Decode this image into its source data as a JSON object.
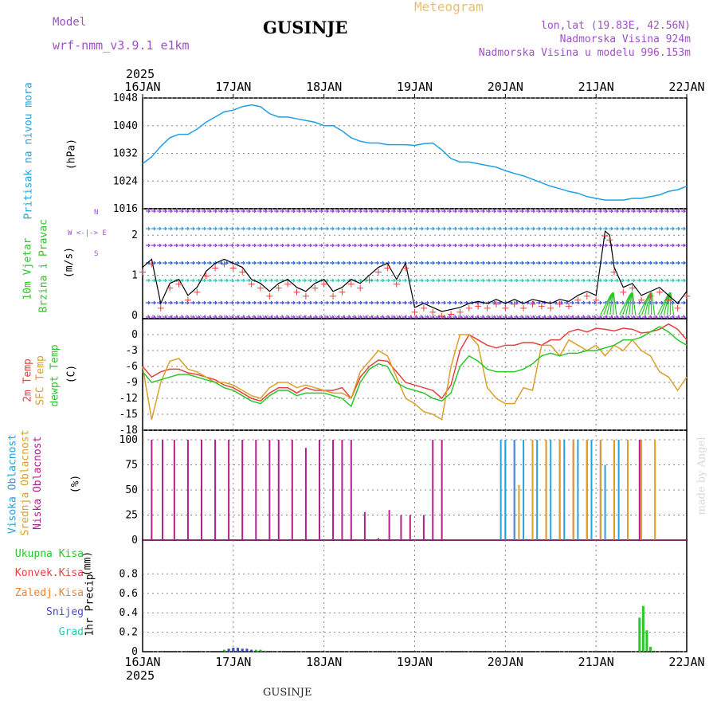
{
  "header": {
    "model_label": "Model",
    "model_name": "wrf-nmm_v3.9.1  e1km",
    "title": "GUSINJE",
    "meteogram": "Meteogram",
    "lonlat": "lon,lat (19.83E, 42.56N)",
    "elevation": "Nadmorska Visina 924m",
    "model_elevation": "Nadmorska Visina u modelu 996.153m",
    "year": "2025",
    "footer_station": "GUSINJE",
    "watermark": "made by Angel"
  },
  "colors": {
    "pressure": "#1ea0e6",
    "temp2m": "#e84040",
    "sfc_temp": "#dca028",
    "dewpt": "#28c828",
    "cloud_high": "#28a0dc",
    "cloud_mid": "#dca028",
    "cloud_low": "#b41e8c",
    "precip_total": "#28c828",
    "precip_conv": "#e84040",
    "precip_frz": "#f08232",
    "snow": "#4646dc",
    "graupel": "#28c8b4",
    "wind_label": "#28c828",
    "purple": "#a050c8"
  },
  "x_axis": {
    "ticks": [
      "16JAN",
      "17JAN",
      "18JAN",
      "19JAN",
      "20JAN",
      "21JAN",
      "22JAN"
    ]
  },
  "chart_data": [
    {
      "type": "line",
      "panel": "pressure",
      "ylabel": "Pritisak na nivou mora",
      "unit": "(hPa)",
      "ylim": [
        1016,
        1048
      ],
      "yticks": [
        1016,
        1024,
        1032,
        1040,
        1048
      ],
      "x_days": [
        0,
        0.1,
        0.2,
        0.3,
        0.4,
        0.5,
        0.6,
        0.7,
        0.8,
        0.9,
        1.0,
        1.1,
        1.2,
        1.3,
        1.4,
        1.5,
        1.6,
        1.7,
        1.8,
        1.9,
        2.0,
        2.1,
        2.2,
        2.3,
        2.4,
        2.5,
        2.6,
        2.7,
        2.8,
        2.9,
        3.0,
        3.1,
        3.2,
        3.3,
        3.4,
        3.5,
        3.6,
        3.7,
        3.8,
        3.9,
        4.0,
        4.1,
        4.2,
        4.3,
        4.4,
        4.5,
        4.6,
        4.7,
        4.8,
        4.9,
        5.0,
        5.1,
        5.2,
        5.3,
        5.4,
        5.5,
        5.6,
        5.7,
        5.8,
        5.9,
        6.0
      ],
      "series": [
        {
          "values": [
            1029,
            1031,
            1034,
            1036.5,
            1037.5,
            1037.5,
            1039,
            1041,
            1042.5,
            1044,
            1044.5,
            1045.5,
            1046,
            1045.5,
            1043.5,
            1042.5,
            1042.5,
            1042,
            1041.5,
            1041,
            1040,
            1040,
            1038.5,
            1036.5,
            1035.5,
            1035,
            1035,
            1034.5,
            1034.5,
            1034.5,
            1034.3,
            1034.8,
            1035,
            1033,
            1030.5,
            1029.5,
            1029.5,
            1029,
            1028.5,
            1028,
            1027,
            1026.2,
            1025.5,
            1024.5,
            1023.5,
            1022.5,
            1021.8,
            1021,
            1020.5,
            1019.5,
            1019,
            1018.5,
            1018.5,
            1018.5,
            1019,
            1019,
            1019.5,
            1020,
            1021,
            1021.5,
            1022.5
          ]
        }
      ]
    },
    {
      "type": "line",
      "panel": "wind",
      "ylabel_lines": [
        "10m Vjetar",
        "Brzina i Pravac"
      ],
      "unit": "(m/s)",
      "ylim": [
        0,
        2.5
      ],
      "yticks": [
        0,
        1,
        2
      ],
      "compass": "N",
      "compass_row": "W <-|-> E",
      "compass_bottom": "S",
      "x_days": [
        0,
        0.1,
        0.2,
        0.3,
        0.4,
        0.5,
        0.6,
        0.7,
        0.8,
        0.9,
        1.0,
        1.1,
        1.2,
        1.3,
        1.4,
        1.5,
        1.6,
        1.7,
        1.8,
        1.9,
        2.0,
        2.1,
        2.2,
        2.3,
        2.4,
        2.5,
        2.6,
        2.7,
        2.8,
        2.9,
        3.0,
        3.1,
        3.2,
        3.3,
        3.4,
        3.5,
        3.6,
        3.7,
        3.8,
        3.9,
        4.0,
        4.1,
        4.2,
        4.3,
        4.4,
        4.5,
        4.6,
        4.7,
        4.8,
        4.9,
        5.0,
        5.1,
        5.15,
        5.2,
        5.3,
        5.4,
        5.5,
        5.6,
        5.7,
        5.8,
        5.9,
        6.0
      ],
      "series": [
        {
          "values": [
            1.2,
            1.4,
            0.3,
            0.8,
            0.9,
            0.5,
            0.7,
            1.1,
            1.3,
            1.4,
            1.3,
            1.2,
            0.9,
            0.8,
            0.6,
            0.8,
            0.9,
            0.7,
            0.6,
            0.8,
            0.9,
            0.6,
            0.7,
            0.9,
            0.8,
            1.0,
            1.2,
            1.3,
            0.9,
            1.3,
            0.2,
            0.3,
            0.2,
            0.1,
            0.15,
            0.2,
            0.3,
            0.35,
            0.3,
            0.4,
            0.3,
            0.4,
            0.3,
            0.4,
            0.35,
            0.3,
            0.4,
            0.35,
            0.5,
            0.6,
            0.5,
            2.1,
            2.0,
            1.2,
            0.7,
            0.8,
            0.5,
            0.6,
            0.7,
            0.5,
            0.3,
            0.6
          ]
        }
      ]
    },
    {
      "type": "line",
      "panel": "temperature",
      "ylabel_lines": [
        "2m Temp",
        "SFC Temp",
        "dewpt Temp"
      ],
      "unit": "(C)",
      "ylim": [
        -18,
        0
      ],
      "yticks": [
        0,
        -3,
        -6,
        -9,
        -12,
        -15,
        -18
      ],
      "x_days": [
        0,
        0.1,
        0.2,
        0.3,
        0.4,
        0.5,
        0.6,
        0.7,
        0.8,
        0.9,
        1.0,
        1.1,
        1.2,
        1.3,
        1.4,
        1.5,
        1.6,
        1.7,
        1.8,
        1.9,
        2.0,
        2.1,
        2.2,
        2.3,
        2.4,
        2.5,
        2.6,
        2.7,
        2.8,
        2.9,
        3.0,
        3.1,
        3.2,
        3.3,
        3.4,
        3.5,
        3.6,
        3.7,
        3.8,
        3.9,
        4.0,
        4.1,
        4.2,
        4.3,
        4.4,
        4.5,
        4.6,
        4.7,
        4.8,
        4.9,
        5.0,
        5.1,
        5.2,
        5.3,
        5.4,
        5.5,
        5.6,
        5.7,
        5.8,
        5.9,
        6.0
      ],
      "series": [
        {
          "name": "2m Temp",
          "values": [
            -6,
            -8,
            -7,
            -6.5,
            -6.5,
            -7.2,
            -7.5,
            -8,
            -8.5,
            -9.5,
            -10,
            -11,
            -12,
            -12.5,
            -11,
            -10,
            -10,
            -11,
            -10,
            -10.5,
            -10.5,
            -10.5,
            -10,
            -12,
            -8,
            -6,
            -4.8,
            -5,
            -7,
            -9,
            -9.5,
            -10,
            -10.5,
            -12,
            -9.5,
            -3,
            0,
            -1,
            -2,
            -2.5,
            -2,
            -2,
            -1.5,
            -1.5,
            -2,
            -1,
            -1,
            0.5,
            1,
            0.5,
            1.2,
            1,
            0.7,
            1.2,
            1,
            0.3,
            0.5,
            1,
            2,
            1,
            -1
          ]
        },
        {
          "name": "SFC Temp",
          "values": [
            -6,
            -16,
            -9,
            -5,
            -4.5,
            -6.5,
            -7,
            -8,
            -9,
            -9,
            -9.5,
            -10.5,
            -11.5,
            -12,
            -10,
            -9,
            -9,
            -10,
            -9.5,
            -10,
            -10.5,
            -11,
            -11,
            -12,
            -7,
            -5,
            -3,
            -4,
            -8,
            -12,
            -13,
            -14.5,
            -15,
            -16,
            -6,
            0,
            0,
            -2,
            -10,
            -12,
            -13,
            -13,
            -10,
            -10.5,
            -2,
            -2,
            -4,
            -1,
            -2,
            -3,
            -2,
            -4,
            -2,
            -3,
            -1,
            -3,
            -4,
            -7,
            -8,
            -10.5,
            -8
          ]
        },
        {
          "name": "dewpt Temp",
          "values": [
            -7,
            -9,
            -8.5,
            -8,
            -7.5,
            -7.5,
            -8,
            -8.5,
            -9,
            -10,
            -10.5,
            -11.5,
            -12.5,
            -13,
            -11.5,
            -10.5,
            -10.5,
            -11.5,
            -11,
            -11,
            -11,
            -11.5,
            -12,
            -13.5,
            -9,
            -6.5,
            -5.5,
            -6,
            -9,
            -10,
            -10.5,
            -11,
            -12,
            -12.5,
            -11,
            -6,
            -4,
            -5,
            -6.5,
            -7,
            -7,
            -7,
            -6.5,
            -5.5,
            -4,
            -3.5,
            -4,
            -3.5,
            -3.5,
            -3,
            -3,
            -2.5,
            -2,
            -1,
            -1,
            -0.5,
            0.5,
            1.5,
            0.5,
            -1,
            -2
          ]
        }
      ]
    },
    {
      "type": "bar",
      "panel": "cloud",
      "ylabel_lines": [
        "Visoka Oblacnost",
        "Srednja Oblacnost",
        "Niska Oblacnost"
      ],
      "unit": "(%)",
      "ylim": [
        0,
        100
      ],
      "yticks": [
        0,
        25,
        50,
        75,
        100
      ],
      "series": [
        {
          "name": "Niska Oblacnost",
          "x_days": [
            0.1,
            0.22,
            0.35,
            0.5,
            0.65,
            0.8,
            0.95,
            1.1,
            1.25,
            1.4,
            1.5,
            1.65,
            1.8,
            1.95,
            2.1,
            2.2,
            2.3,
            2.45,
            2.6,
            2.72,
            2.85,
            2.95,
            3.1,
            3.2,
            3.3,
            4.1,
            4.3,
            4.45,
            4.6,
            4.75,
            4.9,
            5.05,
            5.2,
            5.35,
            5.48
          ],
          "values": [
            100,
            100,
            100,
            100,
            100,
            100,
            100,
            100,
            100,
            100,
            100,
            100,
            92,
            100,
            100,
            100,
            100,
            28,
            2,
            30,
            25,
            25,
            25,
            100,
            100,
            100,
            100,
            100,
            100,
            100,
            100,
            100,
            100,
            100,
            100
          ]
        },
        {
          "name": "Srednja Oblacnost",
          "x_days": [
            4.0,
            4.15,
            4.3,
            4.45,
            4.6,
            4.75,
            4.9,
            5.05,
            5.2,
            5.35,
            5.5,
            5.65
          ],
          "values": [
            100,
            55,
            100,
            100,
            100,
            100,
            100,
            100,
            100,
            100,
            100,
            100
          ]
        },
        {
          "name": "Visoka Oblacnost",
          "x_days": [
            3.95,
            4.0,
            4.1,
            4.2,
            4.35,
            4.5,
            4.65,
            4.8,
            4.95,
            5.1,
            5.25
          ],
          "values": [
            100,
            100,
            100,
            100,
            100,
            100,
            100,
            100,
            100,
            75,
            100
          ]
        }
      ]
    },
    {
      "type": "bar",
      "panel": "precip",
      "ylabel_lines": [
        "1hr Precip",
        "(mm)"
      ],
      "ylim": [
        0,
        1
      ],
      "yticks": [
        0,
        0.2,
        0.4,
        0.6,
        0.8
      ],
      "legend": [
        "Ukupna Kisa",
        "Konvek.Kisa",
        "Zaledj.Kisa",
        "Snijeg",
        "Grad"
      ],
      "series": [
        {
          "name": "Ukupna Kisa",
          "x_days": [
            0.9,
            0.95,
            1.0,
            1.05,
            1.1,
            1.15,
            1.2,
            1.25,
            1.3,
            1.35,
            5.48,
            5.52,
            5.56,
            5.6,
            5.64
          ],
          "values": [
            0.02,
            0.03,
            0.04,
            0.04,
            0.03,
            0.03,
            0.02,
            0.02,
            0.02,
            0.01,
            0.35,
            0.47,
            0.22,
            0.05,
            0.01
          ]
        },
        {
          "name": "Snijeg",
          "x_days": [
            0.95,
            1.0,
            1.05,
            1.1,
            1.15,
            1.2
          ],
          "values": [
            0.03,
            0.04,
            0.04,
            0.03,
            0.03,
            0.02
          ]
        }
      ]
    }
  ]
}
